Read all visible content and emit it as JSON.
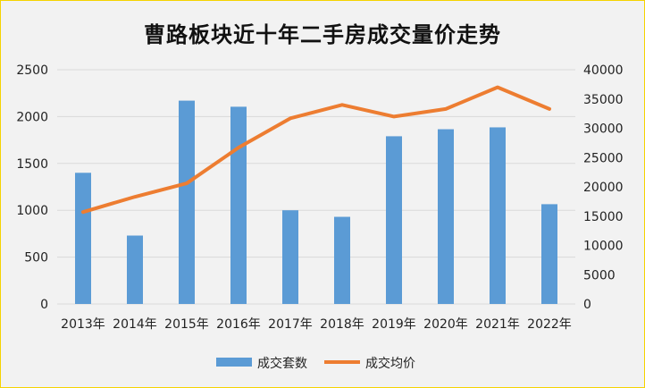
{
  "chart_data": {
    "type": "bar+line",
    "title": "曹路板块近十年二手房成交量价走势",
    "categories": [
      "2013年",
      "2014年",
      "2015年",
      "2016年",
      "2017年",
      "2018年",
      "2019年",
      "2020年",
      "2021年",
      "2022年"
    ],
    "series": [
      {
        "name": "成交套数",
        "type": "bar",
        "axis": "left",
        "color": "#5b9bd5",
        "values": [
          1400,
          730,
          2170,
          2105,
          1000,
          930,
          1790,
          1865,
          1885,
          1065
        ]
      },
      {
        "name": "成交均价",
        "type": "line",
        "axis": "right",
        "color": "#ed7d31",
        "values": [
          15700,
          18300,
          20600,
          26700,
          31700,
          34000,
          32000,
          33300,
          37000,
          33300
        ]
      }
    ],
    "ylim_left": [
      0,
      2500
    ],
    "yticks_left": [
      "0",
      "500",
      "1000",
      "1500",
      "2000",
      "2500"
    ],
    "ylim_right": [
      0,
      40000
    ],
    "yticks_right": [
      "0",
      "5000",
      "10000",
      "15000",
      "20000",
      "25000",
      "30000",
      "35000",
      "40000"
    ],
    "grid": true,
    "legend": "bottom"
  }
}
